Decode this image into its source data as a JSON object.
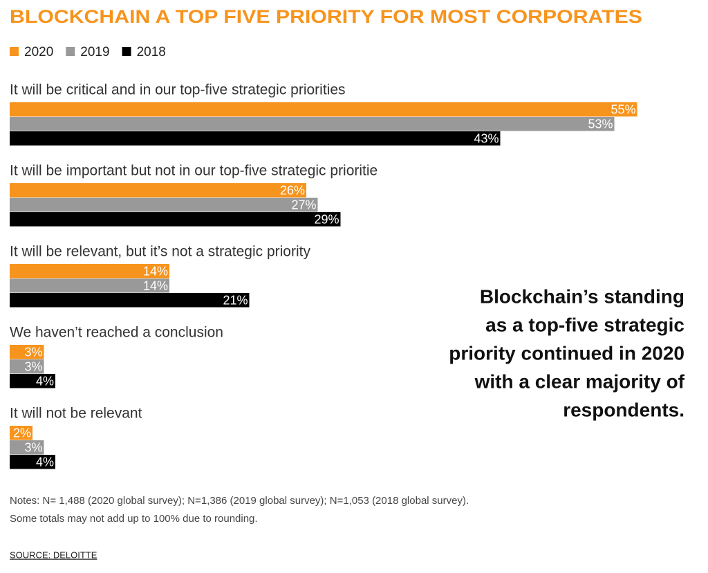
{
  "chart_data": {
    "type": "bar",
    "orientation": "horizontal",
    "title": "BLOCKCHAIN A TOP FIVE PRIORITY FOR MOST CORPORATES",
    "categories": [
      "It will be critical and in our top-five strategic priorities",
      "It will be important but not in our top-five strategic prioritie",
      "It will be relevant, but it’s not a strategic priority",
      "We haven’t reached a conclusion",
      "It will not be relevant"
    ],
    "series": [
      {
        "name": "2020",
        "color": "#f7941d",
        "values": [
          55,
          26,
          14,
          3,
          2
        ],
        "value_labels": [
          "55%",
          "26%",
          "14%",
          "3%",
          "2%"
        ]
      },
      {
        "name": "2019",
        "color": "#999999",
        "values": [
          53,
          27,
          14,
          3,
          3
        ],
        "value_labels": [
          "53%",
          "27%",
          "14%",
          "3%",
          "3%"
        ]
      },
      {
        "name": "2018",
        "color": "#000000",
        "values": [
          43,
          29,
          21,
          4,
          4
        ],
        "value_labels": [
          "43%",
          "29%",
          "21%",
          "4%",
          "4%"
        ]
      }
    ],
    "annotation": [
      "Blockchain’s standing",
      "as a top-five strategic",
      "priority continued in 2020",
      "with a clear majority of",
      "respondents."
    ],
    "notes": [
      "Notes: N= 1,488 (2020 global survey); N=1,386 (2019 global survey); N=1,053 (2018 global survey).",
      "Some totals may not add up to 100% due to rounding."
    ],
    "source": "SOURCE: DELOITTE"
  }
}
